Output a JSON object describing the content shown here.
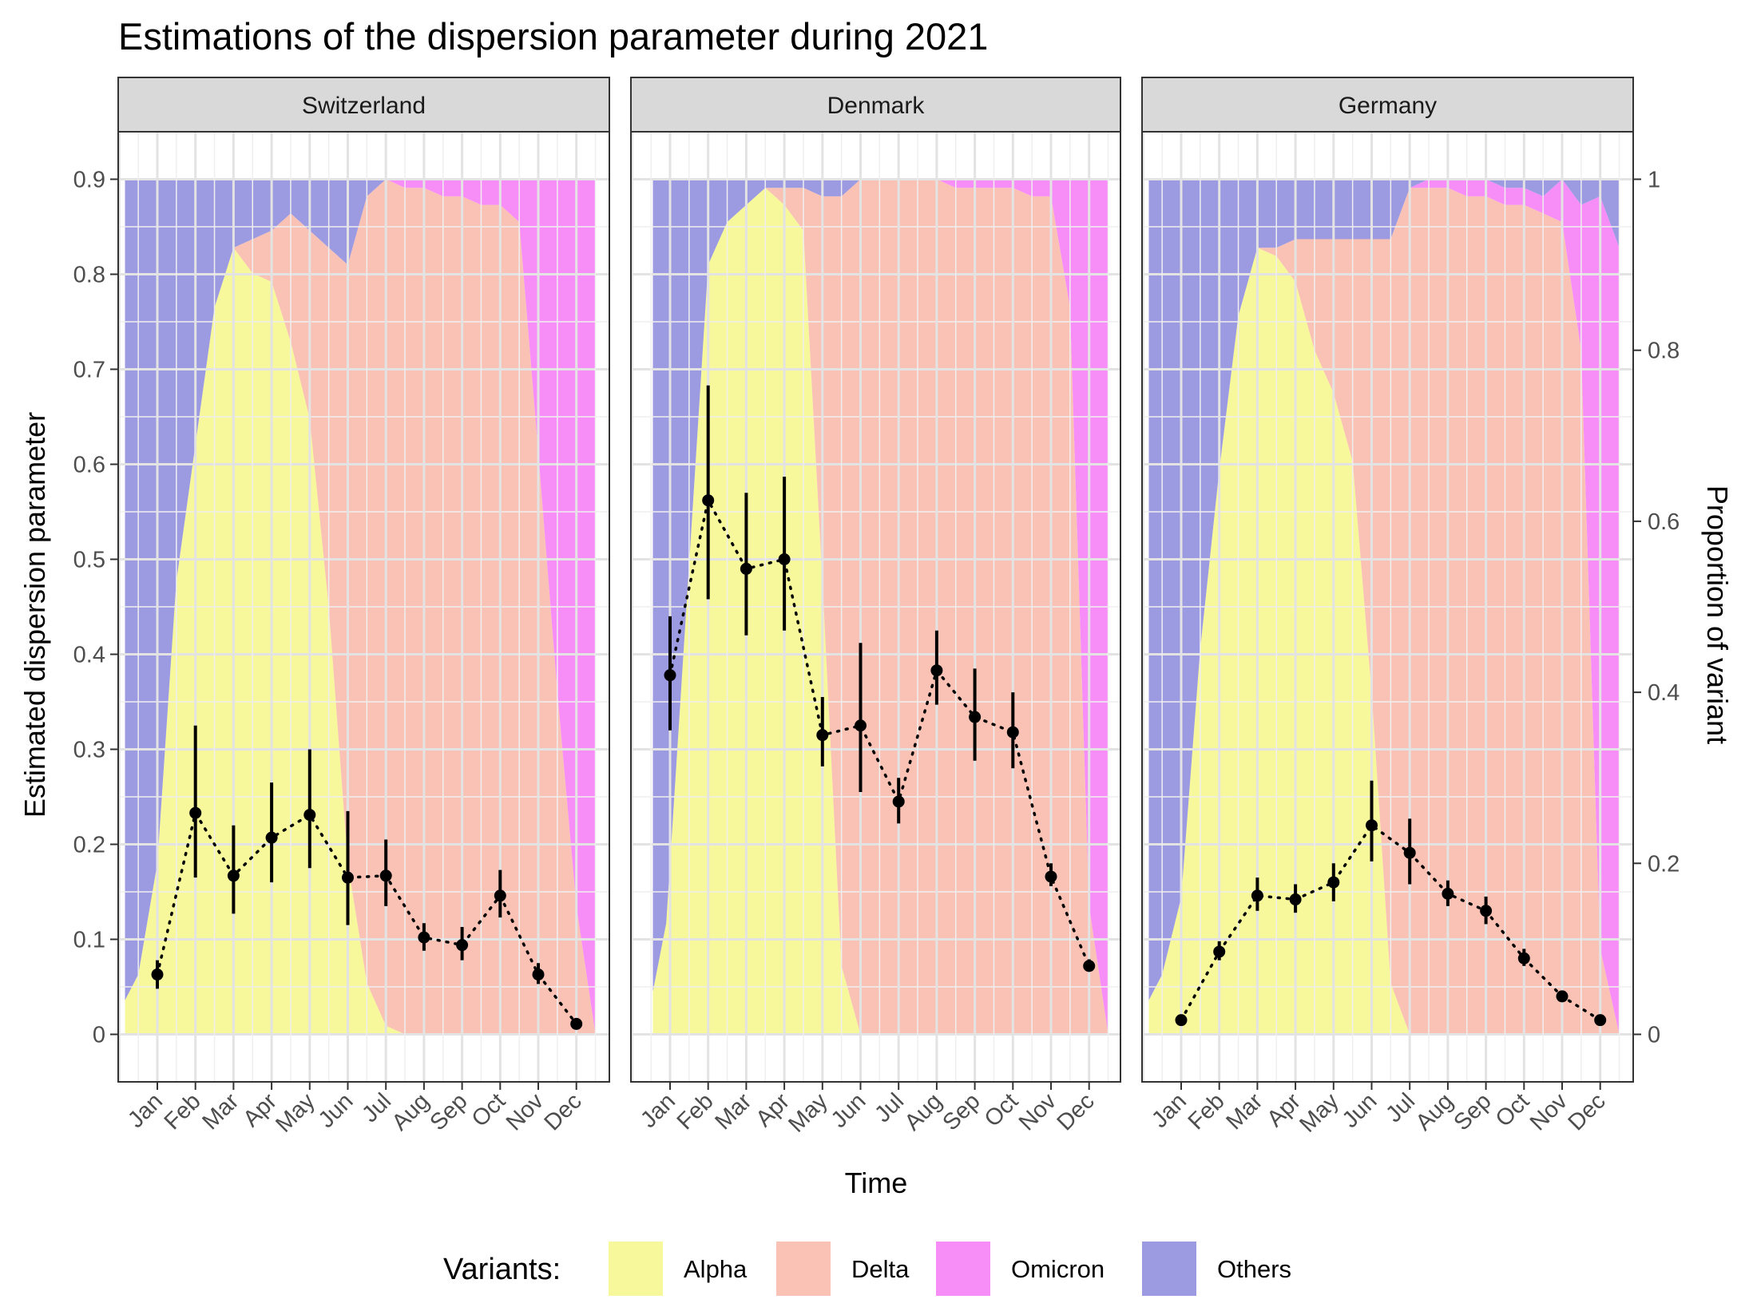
{
  "chart_data": {
    "type": "area+errorbar",
    "title": "Estimations of the dispersion parameter during 2021",
    "xlabel": "Time",
    "ylabel": "Estimated dispersion parameter",
    "ylabel_right": "Proportion of variant",
    "ylim": [
      -0.05,
      0.95
    ],
    "yticks": [
      0,
      0.1,
      0.2,
      0.3,
      0.4,
      0.5,
      0.6,
      0.7,
      0.8,
      0.9
    ],
    "ytick_labels": [
      "0",
      "0.1",
      "0.2",
      "0.3",
      "0.4",
      "0.5",
      "0.6",
      "0.7",
      "0.8",
      "0.9"
    ],
    "y2ticks": [
      0,
      0.2,
      0.4,
      0.6,
      0.8,
      1
    ],
    "y2tick_labels": [
      "0",
      "0.2",
      "0.4",
      "0.6",
      "0.8",
      "1"
    ],
    "months": [
      "Jan",
      "Feb",
      "Mar",
      "Apr",
      "May",
      "Jun",
      "Jul",
      "Aug",
      "Sep",
      "Oct",
      "Nov",
      "Dec"
    ],
    "legend": {
      "title": "Variants:",
      "items": [
        {
          "name": "Alpha",
          "color": "#f7f79c"
        },
        {
          "name": "Delta",
          "color": "#f9c2b5"
        },
        {
          "name": "Omicron",
          "color": "#f78ef7"
        },
        {
          "name": "Others",
          "color": "#9c9ae0"
        }
      ]
    },
    "panels": [
      {
        "name": "Switzerland",
        "variant_x": [
          -0.85,
          -0.5,
          0,
          0.5,
          1,
          1.5,
          2,
          2.5,
          3,
          3.5,
          4,
          4.5,
          5,
          5.5,
          6,
          6.5,
          7,
          7.5,
          8,
          8.5,
          9,
          9.5,
          10,
          10.5,
          11,
          11.5
        ],
        "variant_stacks": {
          "Alpha": [
            0.04,
            0.07,
            0.2,
            0.53,
            0.69,
            0.85,
            0.92,
            0.89,
            0.88,
            0.81,
            0.72,
            0.5,
            0.2,
            0.06,
            0.01,
            0,
            0,
            0,
            0,
            0,
            0,
            0,
            0,
            0,
            0,
            0
          ],
          "Delta": [
            0,
            0,
            0,
            0,
            0,
            0,
            0,
            0.04,
            0.06,
            0.15,
            0.22,
            0.42,
            0.7,
            0.92,
            0.99,
            0.99,
            0.99,
            0.98,
            0.98,
            0.97,
            0.97,
            0.95,
            0.68,
            0.4,
            0.15,
            0
          ],
          "Omicron": [
            0,
            0,
            0,
            0,
            0,
            0,
            0,
            0,
            0,
            0,
            0,
            0,
            0,
            0,
            0,
            0.01,
            0.01,
            0.02,
            0.02,
            0.03,
            0.03,
            0.05,
            0.32,
            0.6,
            0.85,
            1
          ],
          "Others": [
            0.96,
            0.93,
            0.8,
            0.47,
            0.31,
            0.15,
            0.08,
            0.07,
            0.06,
            0.04,
            0.06,
            0.08,
            0.1,
            0.02,
            0,
            0,
            0,
            0,
            0,
            0,
            0,
            0,
            0,
            0,
            0,
            0
          ]
        },
        "estimates": [
          {
            "month": "Jan",
            "value": 0.063,
            "lower": 0.048,
            "upper": 0.078
          },
          {
            "month": "Feb",
            "value": 0.233,
            "lower": 0.165,
            "upper": 0.325
          },
          {
            "month": "Mar",
            "value": 0.167,
            "lower": 0.127,
            "upper": 0.22
          },
          {
            "month": "Apr",
            "value": 0.207,
            "lower": 0.16,
            "upper": 0.265
          },
          {
            "month": "May",
            "value": 0.231,
            "lower": 0.175,
            "upper": 0.3
          },
          {
            "month": "Jun",
            "value": 0.165,
            "lower": 0.115,
            "upper": 0.235
          },
          {
            "month": "Jul",
            "value": 0.167,
            "lower": 0.135,
            "upper": 0.205
          },
          {
            "month": "Aug",
            "value": 0.102,
            "lower": 0.088,
            "upper": 0.117
          },
          {
            "month": "Sep",
            "value": 0.094,
            "lower": 0.078,
            "upper": 0.113
          },
          {
            "month": "Oct",
            "value": 0.146,
            "lower": 0.123,
            "upper": 0.173
          },
          {
            "month": "Nov",
            "value": 0.063,
            "lower": 0.053,
            "upper": 0.075
          },
          {
            "month": "Dec",
            "value": 0.011,
            "lower": 0.008,
            "upper": 0.014
          }
        ]
      },
      {
        "name": "Denmark",
        "variant_x": [
          -0.45,
          -0.1,
          0.5,
          1,
          1.5,
          2,
          2.5,
          3,
          3.5,
          4,
          4.5,
          5,
          5.5,
          6,
          6.5,
          7,
          7.5,
          8,
          8.5,
          9,
          9.5,
          10,
          10.5,
          11,
          11.5
        ],
        "variant_stacks": {
          "Alpha": [
            0.05,
            0.13,
            0.55,
            0.9,
            0.95,
            0.97,
            0.99,
            0.97,
            0.94,
            0.53,
            0.08,
            0,
            0,
            0,
            0,
            0,
            0,
            0,
            0,
            0,
            0,
            0,
            0,
            0,
            0
          ],
          "Delta": [
            0,
            0,
            0,
            0,
            0,
            0,
            0,
            0.02,
            0.05,
            0.45,
            0.9,
            1,
            1,
            1,
            1,
            1,
            0.99,
            0.99,
            0.99,
            0.99,
            0.98,
            0.98,
            0.85,
            0.15,
            0
          ],
          "Omicron": [
            0,
            0,
            0,
            0,
            0,
            0,
            0,
            0,
            0,
            0,
            0,
            0,
            0,
            0,
            0,
            0,
            0.01,
            0.01,
            0.01,
            0.01,
            0.02,
            0.02,
            0.15,
            0.85,
            1
          ],
          "Others": [
            0.95,
            0.87,
            0.45,
            0.1,
            0.05,
            0.03,
            0.01,
            0.01,
            0.01,
            0.02,
            0.02,
            0,
            0,
            0,
            0,
            0,
            0,
            0,
            0,
            0,
            0,
            0,
            0,
            0,
            0
          ]
        },
        "estimates": [
          {
            "month": "Jan",
            "value": 0.378,
            "lower": 0.32,
            "upper": 0.44
          },
          {
            "month": "Feb",
            "value": 0.562,
            "lower": 0.458,
            "upper": 0.683
          },
          {
            "month": "Mar",
            "value": 0.49,
            "lower": 0.42,
            "upper": 0.57
          },
          {
            "month": "Apr",
            "value": 0.5,
            "lower": 0.425,
            "upper": 0.587
          },
          {
            "month": "May",
            "value": 0.315,
            "lower": 0.282,
            "upper": 0.355
          },
          {
            "month": "Jun",
            "value": 0.325,
            "lower": 0.255,
            "upper": 0.412
          },
          {
            "month": "Jul",
            "value": 0.245,
            "lower": 0.222,
            "upper": 0.27
          },
          {
            "month": "Aug",
            "value": 0.383,
            "lower": 0.347,
            "upper": 0.425
          },
          {
            "month": "Sep",
            "value": 0.334,
            "lower": 0.288,
            "upper": 0.385
          },
          {
            "month": "Oct",
            "value": 0.318,
            "lower": 0.28,
            "upper": 0.36
          },
          {
            "month": "Nov",
            "value": 0.166,
            "lower": 0.156,
            "upper": 0.18
          },
          {
            "month": "Dec",
            "value": 0.072,
            "lower": 0.066,
            "upper": 0.079
          }
        ]
      },
      {
        "name": "Germany",
        "variant_x": [
          -0.85,
          -0.5,
          0,
          0.5,
          1,
          1.5,
          2,
          2.5,
          3,
          3.5,
          4,
          4.5,
          5,
          5.5,
          6,
          6.5,
          7,
          7.5,
          8,
          8.5,
          9,
          9.5,
          10,
          10.5,
          11,
          11.5
        ],
        "variant_stacks": {
          "Alpha": [
            0.04,
            0.07,
            0.16,
            0.45,
            0.66,
            0.84,
            0.92,
            0.91,
            0.88,
            0.8,
            0.75,
            0.67,
            0.4,
            0.06,
            0,
            0,
            0,
            0,
            0,
            0,
            0,
            0,
            0,
            0,
            0,
            0
          ],
          "Delta": [
            0,
            0,
            0,
            0,
            0,
            0,
            0,
            0.01,
            0.05,
            0.13,
            0.18,
            0.26,
            0.53,
            0.87,
            0.99,
            0.99,
            0.99,
            0.98,
            0.98,
            0.97,
            0.97,
            0.96,
            0.95,
            0.8,
            0.1,
            0
          ],
          "Omicron": [
            0,
            0,
            0,
            0,
            0,
            0,
            0,
            0,
            0,
            0,
            0,
            0,
            0,
            0,
            0,
            0.01,
            0.01,
            0.02,
            0.02,
            0.02,
            0.02,
            0.02,
            0.05,
            0.17,
            0.88,
            0.92
          ],
          "Others": [
            0.96,
            0.93,
            0.84,
            0.55,
            0.34,
            0.16,
            0.08,
            0.08,
            0.07,
            0.07,
            0.07,
            0.07,
            0.07,
            0.07,
            0.01,
            0,
            0,
            0,
            0,
            0.01,
            0.01,
            0.02,
            0,
            0.03,
            0.02,
            0.08
          ]
        },
        "estimates": [
          {
            "month": "Jan",
            "value": 0.015,
            "lower": 0.012,
            "upper": 0.018
          },
          {
            "month": "Feb",
            "value": 0.087,
            "lower": 0.078,
            "upper": 0.098
          },
          {
            "month": "Mar",
            "value": 0.146,
            "lower": 0.13,
            "upper": 0.165
          },
          {
            "month": "Apr",
            "value": 0.142,
            "lower": 0.128,
            "upper": 0.158
          },
          {
            "month": "May",
            "value": 0.16,
            "lower": 0.14,
            "upper": 0.18
          },
          {
            "month": "Jun",
            "value": 0.22,
            "lower": 0.182,
            "upper": 0.267
          },
          {
            "month": "Jul",
            "value": 0.191,
            "lower": 0.158,
            "upper": 0.227
          },
          {
            "month": "Aug",
            "value": 0.148,
            "lower": 0.135,
            "upper": 0.162
          },
          {
            "month": "Sep",
            "value": 0.13,
            "lower": 0.116,
            "upper": 0.145
          },
          {
            "month": "Oct",
            "value": 0.08,
            "lower": 0.072,
            "upper": 0.09
          },
          {
            "month": "Nov",
            "value": 0.04,
            "lower": 0.036,
            "upper": 0.044
          },
          {
            "month": "Dec",
            "value": 0.015,
            "lower": 0.012,
            "upper": 0.018
          }
        ]
      }
    ]
  }
}
